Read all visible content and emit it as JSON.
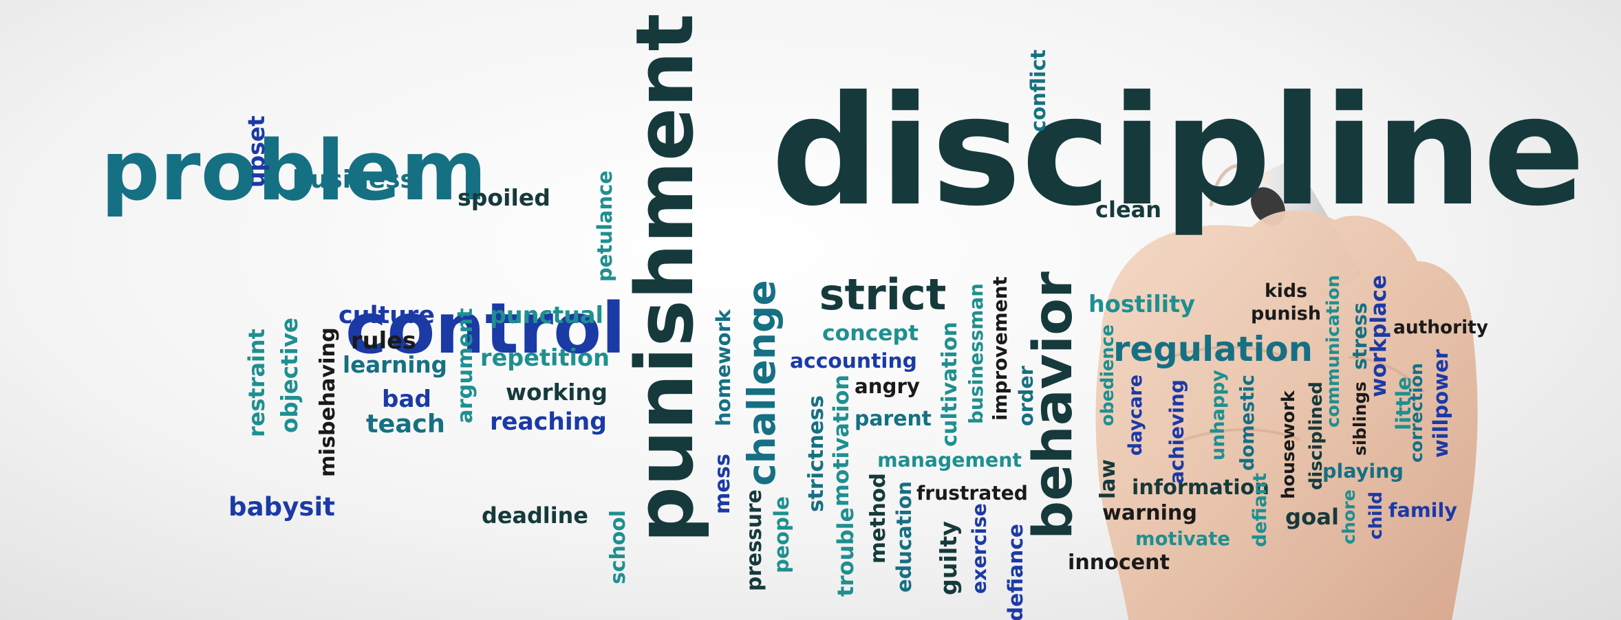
{
  "palette": {
    "dark": "#163a3c",
    "teal": "#167083",
    "blue": "#1b3aa6",
    "sea": "#1f8f90",
    "navy": "#12305f",
    "black": "#1a1a1a"
  },
  "words": [
    {
      "id": "discipline",
      "text": "discipline",
      "color": "dark"
    },
    {
      "id": "problem",
      "text": "problem",
      "color": "teal"
    },
    {
      "id": "punishment",
      "text": "punishment",
      "color": "dark"
    },
    {
      "id": "control",
      "text": "control",
      "color": "blue"
    },
    {
      "id": "behavior",
      "text": "behavior",
      "color": "dark"
    },
    {
      "id": "regulation",
      "text": "regulation",
      "color": "teal"
    },
    {
      "id": "strict",
      "text": "strict",
      "color": "dark"
    },
    {
      "id": "challenge",
      "text": "challenge",
      "color": "teal"
    },
    {
      "id": "upset",
      "text": "upset",
      "color": "blue"
    },
    {
      "id": "business",
      "text": "business",
      "color": "teal"
    },
    {
      "id": "spoiled",
      "text": "spoiled",
      "color": "dark"
    },
    {
      "id": "petulance",
      "text": "petulance",
      "color": "sea"
    },
    {
      "id": "conflict",
      "text": "conflict",
      "color": "teal"
    },
    {
      "id": "clean",
      "text": "clean",
      "color": "dark"
    },
    {
      "id": "culture",
      "text": "culture",
      "color": "blue"
    },
    {
      "id": "rules",
      "text": "rules",
      "color": "black"
    },
    {
      "id": "learning",
      "text": "learning",
      "color": "teal"
    },
    {
      "id": "bad",
      "text": "bad",
      "color": "blue"
    },
    {
      "id": "teach",
      "text": "teach",
      "color": "teal"
    },
    {
      "id": "punctual",
      "text": "punctual",
      "color": "sea"
    },
    {
      "id": "repetition",
      "text": "repetition",
      "color": "sea"
    },
    {
      "id": "working",
      "text": "working",
      "color": "dark"
    },
    {
      "id": "reaching",
      "text": "reaching",
      "color": "blue"
    },
    {
      "id": "restraint",
      "text": "restraint",
      "color": "sea"
    },
    {
      "id": "objective",
      "text": "objective",
      "color": "sea"
    },
    {
      "id": "misbehaving",
      "text": "misbehaving",
      "color": "black"
    },
    {
      "id": "argument",
      "text": "argument",
      "color": "sea"
    },
    {
      "id": "babysit",
      "text": "babysit",
      "color": "blue"
    },
    {
      "id": "deadline",
      "text": "deadline",
      "color": "dark"
    },
    {
      "id": "school",
      "text": "school",
      "color": "sea"
    },
    {
      "id": "homework",
      "text": "homework",
      "color": "teal"
    },
    {
      "id": "mess",
      "text": "mess",
      "color": "blue"
    },
    {
      "id": "pressure",
      "text": "pressure",
      "color": "dark"
    },
    {
      "id": "people",
      "text": "people",
      "color": "sea"
    },
    {
      "id": "strictness",
      "text": "strictness",
      "color": "teal"
    },
    {
      "id": "trouble",
      "text": "trouble",
      "color": "sea"
    },
    {
      "id": "motivation",
      "text": "motivation",
      "color": "sea"
    },
    {
      "id": "method",
      "text": "method",
      "color": "dark"
    },
    {
      "id": "education",
      "text": "education",
      "color": "teal"
    },
    {
      "id": "concept",
      "text": "concept",
      "color": "sea"
    },
    {
      "id": "accounting",
      "text": "accounting",
      "color": "blue"
    },
    {
      "id": "angry",
      "text": "angry",
      "color": "black"
    },
    {
      "id": "parent",
      "text": "parent",
      "color": "teal"
    },
    {
      "id": "management",
      "text": "management",
      "color": "sea"
    },
    {
      "id": "frustrated",
      "text": "frustrated",
      "color": "black"
    },
    {
      "id": "guilty",
      "text": "guilty",
      "color": "dark"
    },
    {
      "id": "exercise",
      "text": "exercise",
      "color": "blue"
    },
    {
      "id": "cultivation",
      "text": "cultivation",
      "color": "sea"
    },
    {
      "id": "businessman",
      "text": "businessman",
      "color": "sea"
    },
    {
      "id": "improvement",
      "text": "improvement",
      "color": "black"
    },
    {
      "id": "order",
      "text": "order",
      "color": "teal"
    },
    {
      "id": "defiance",
      "text": "defiance",
      "color": "blue"
    },
    {
      "id": "innocent",
      "text": "innocent",
      "color": "black"
    },
    {
      "id": "hostility",
      "text": "hostility",
      "color": "sea"
    },
    {
      "id": "obedience",
      "text": "obedience",
      "color": "sea"
    },
    {
      "id": "law",
      "text": "law",
      "color": "dark"
    },
    {
      "id": "daycare",
      "text": "daycare",
      "color": "blue"
    },
    {
      "id": "achieving",
      "text": "achieving",
      "color": "blue"
    },
    {
      "id": "unhappy",
      "text": "unhappy",
      "color": "sea"
    },
    {
      "id": "domestic",
      "text": "domestic",
      "color": "teal"
    },
    {
      "id": "information",
      "text": "information",
      "color": "dark"
    },
    {
      "id": "warning",
      "text": "warning",
      "color": "black"
    },
    {
      "id": "motivate",
      "text": "motivate",
      "color": "sea"
    },
    {
      "id": "defiant",
      "text": "defiant",
      "color": "sea"
    },
    {
      "id": "housework",
      "text": "housework",
      "color": "black"
    },
    {
      "id": "disciplined",
      "text": "disciplined",
      "color": "dark"
    },
    {
      "id": "goal",
      "text": "goal",
      "color": "dark"
    },
    {
      "id": "kids",
      "text": "kids",
      "color": "black"
    },
    {
      "id": "punish",
      "text": "punish",
      "color": "black"
    },
    {
      "id": "communication",
      "text": "communication",
      "color": "sea"
    },
    {
      "id": "stress",
      "text": "stress",
      "color": "teal"
    },
    {
      "id": "workplace",
      "text": "workplace",
      "color": "blue"
    },
    {
      "id": "siblings",
      "text": "siblings",
      "color": "black"
    },
    {
      "id": "little",
      "text": "little",
      "color": "sea"
    },
    {
      "id": "correction",
      "text": "correction",
      "color": "teal"
    },
    {
      "id": "willpower",
      "text": "willpower",
      "color": "blue"
    },
    {
      "id": "authority",
      "text": "authority",
      "color": "black"
    },
    {
      "id": "playing",
      "text": "playing",
      "color": "teal"
    },
    {
      "id": "chore",
      "text": "chore",
      "color": "sea"
    },
    {
      "id": "child",
      "text": "child",
      "color": "blue"
    },
    {
      "id": "family",
      "text": "family",
      "color": "blue"
    }
  ]
}
